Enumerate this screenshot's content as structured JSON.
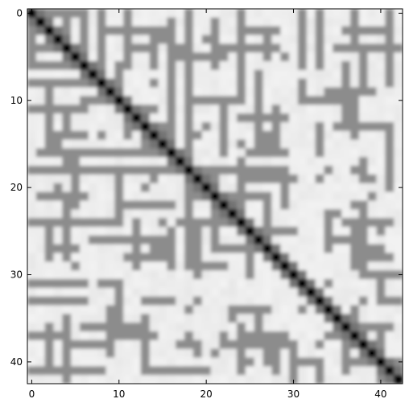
{
  "chart_data": {
    "type": "heatmap",
    "title": "",
    "xlabel": "",
    "ylabel": "",
    "n": 43,
    "xlim": [
      -0.5,
      42.5
    ],
    "ylim": [
      42.5,
      -0.5
    ],
    "x_ticks": [
      0,
      10,
      20,
      30,
      40
    ],
    "y_ticks": [
      0,
      10,
      20,
      30,
      40
    ],
    "x_tick_labels": [
      "0",
      "10",
      "20",
      "30",
      "40"
    ],
    "y_tick_labels": [
      "0",
      "10",
      "20",
      "30",
      "40"
    ],
    "colormap": "gray_r",
    "value_range": [
      0,
      1
    ],
    "diagonal_value": 1.0,
    "background_value": 0.05,
    "grid": false,
    "legend": "none",
    "line_segments_value": 0.45,
    "line_segments": [
      [
        0,
        2,
        0,
        5
      ],
      [
        2,
        4,
        0,
        1
      ],
      [
        4,
        6,
        0,
        4
      ],
      [
        6,
        6,
        0,
        4
      ],
      [
        11,
        11,
        0,
        6
      ],
      [
        11,
        14,
        4,
        4
      ],
      [
        14,
        14,
        2,
        6
      ],
      [
        16,
        18,
        4,
        4
      ],
      [
        18,
        18,
        0,
        4
      ],
      [
        21,
        21,
        1,
        6
      ],
      [
        25,
        28,
        4,
        4
      ],
      [
        27,
        27,
        2,
        5
      ],
      [
        33,
        33,
        0,
        6
      ],
      [
        35,
        38,
        4,
        4
      ],
      [
        38,
        38,
        4,
        8
      ],
      [
        41,
        41,
        3,
        8
      ],
      [
        0,
        6,
        8,
        8
      ],
      [
        2,
        2,
        8,
        15
      ],
      [
        6,
        11,
        10,
        10
      ],
      [
        11,
        11,
        10,
        14
      ],
      [
        13,
        16,
        13,
        13
      ],
      [
        16,
        16,
        10,
        15
      ],
      [
        18,
        22,
        10,
        10
      ],
      [
        22,
        22,
        10,
        14
      ],
      [
        24,
        28,
        12,
        12
      ],
      [
        26,
        26,
        10,
        15
      ],
      [
        28,
        28,
        11,
        15
      ],
      [
        32,
        36,
        10,
        10
      ],
      [
        36,
        36,
        10,
        13
      ],
      [
        38,
        41,
        13,
        13
      ],
      [
        33,
        33,
        13,
        16
      ],
      [
        1,
        11,
        16,
        16
      ],
      [
        4,
        4,
        16,
        18
      ],
      [
        0,
        20,
        18,
        18
      ],
      [
        5,
        5,
        17,
        22
      ],
      [
        10,
        10,
        18,
        23
      ],
      [
        11,
        16,
        22,
        22
      ],
      [
        18,
        18,
        18,
        22
      ],
      [
        23,
        29,
        18,
        18
      ],
      [
        19,
        26,
        21,
        21
      ],
      [
        24,
        24,
        17,
        23
      ],
      [
        29,
        29,
        19,
        22
      ],
      [
        0,
        10,
        24,
        24
      ],
      [
        2,
        2,
        24,
        28
      ],
      [
        4,
        4,
        21,
        25
      ],
      [
        7,
        12,
        26,
        26
      ],
      [
        12,
        12,
        24,
        29
      ],
      [
        14,
        16,
        27,
        27
      ],
      [
        16,
        16,
        25,
        29
      ],
      [
        19,
        19,
        25,
        30
      ],
      [
        21,
        25,
        27,
        27
      ],
      [
        25,
        25,
        25,
        30
      ],
      [
        27,
        29,
        28,
        28
      ],
      [
        34,
        37,
        26,
        26
      ],
      [
        37,
        37,
        24,
        29
      ],
      [
        39,
        41,
        28,
        28
      ],
      [
        34,
        34,
        23,
        27
      ],
      [
        0,
        6,
        31,
        31
      ],
      [
        8,
        10,
        31,
        31
      ],
      [
        0,
        4,
        37,
        37
      ],
      [
        2,
        2,
        36,
        40
      ],
      [
        6,
        8,
        36,
        36
      ],
      [
        9,
        9,
        34,
        39
      ],
      [
        10,
        14,
        37,
        37
      ],
      [
        13,
        13,
        35,
        40
      ],
      [
        17,
        19,
        38,
        38
      ],
      [
        22,
        28,
        38,
        38
      ],
      [
        24,
        24,
        36,
        41
      ],
      [
        27,
        27,
        37,
        40
      ],
      [
        30,
        30,
        38,
        42
      ],
      [
        34,
        36,
        37,
        37
      ],
      [
        36,
        36,
        36,
        41
      ],
      [
        38,
        41,
        36,
        36
      ],
      [
        40,
        40,
        36,
        42
      ],
      [
        0,
        8,
        41,
        41
      ],
      [
        4,
        4,
        39,
        42
      ],
      [
        14,
        20,
        41,
        41
      ],
      [
        31,
        33,
        40,
        40
      ],
      [
        33,
        33,
        41,
        42
      ]
    ],
    "ring_value": 0.45,
    "rings": [
      [
        15,
        3
      ],
      [
        20,
        3
      ],
      [
        8,
        6
      ],
      [
        29,
        5
      ],
      [
        36,
        6
      ],
      [
        40,
        2
      ],
      [
        8,
        14
      ],
      [
        19,
        14
      ],
      [
        27,
        15
      ],
      [
        35,
        13
      ],
      [
        34,
        18
      ],
      [
        37,
        18
      ],
      [
        3,
        20
      ],
      [
        13,
        20
      ],
      [
        38,
        23
      ],
      [
        39,
        21
      ],
      [
        15,
        24
      ],
      [
        37,
        27
      ],
      [
        40,
        25
      ],
      [
        19,
        33
      ],
      [
        23,
        35
      ],
      [
        22,
        37
      ],
      [
        33,
        38
      ],
      [
        29,
        38
      ],
      [
        31,
        34
      ],
      [
        36,
        39
      ],
      [
        19,
        39
      ]
    ]
  }
}
